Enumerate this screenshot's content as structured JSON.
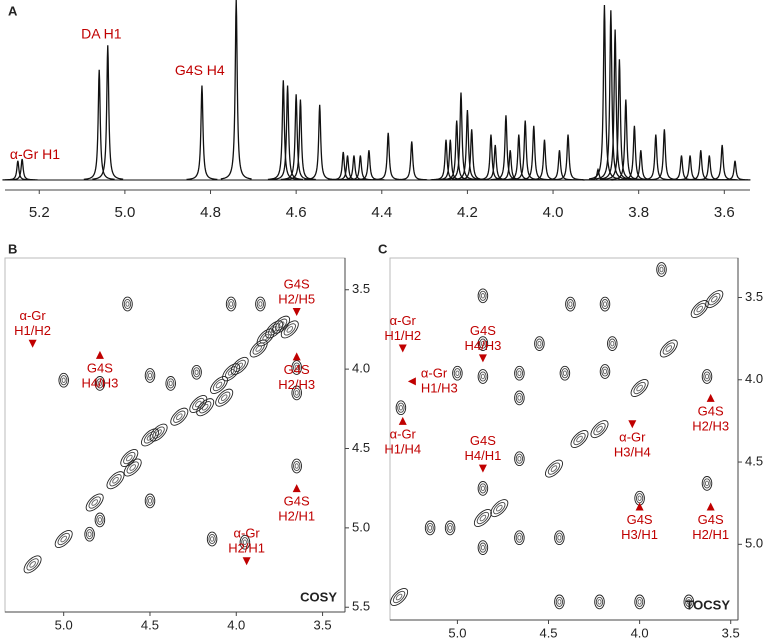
{
  "chart_data": [
    {
      "type": "spectrum",
      "panel": "A",
      "color": "#111111",
      "annotation_color": "#c00000",
      "xlim": [
        5.28,
        3.54
      ],
      "ylim": [
        0,
        100
      ],
      "xticks": [
        5.2,
        {
          "value": 5,
          "label": "5.0"
        },
        4.8,
        4.6,
        4.4,
        4.2,
        {
          "value": 4,
          "label": "4.0"
        },
        3.8,
        3.6
      ],
      "x": [
        5.25,
        5.24,
        5.06,
        5.04,
        4.82,
        4.74,
        4.63,
        4.62,
        4.6,
        4.59,
        4.545,
        4.49,
        4.48,
        4.465,
        4.45,
        4.43,
        4.385,
        4.33,
        4.25,
        4.24,
        4.225,
        4.215,
        4.2,
        4.19,
        4.145,
        4.135,
        4.11,
        4.1,
        4.08,
        4.065,
        4.045,
        4.02,
        3.985,
        3.965,
        3.895,
        3.88,
        3.865,
        3.855,
        3.845,
        3.83,
        3.81,
        3.795,
        3.76,
        3.74,
        3.7,
        3.68,
        3.655,
        3.635,
        3.605,
        3.575
      ],
      "values": [
        11,
        12,
        63,
        77,
        54,
        103,
        57,
        54,
        49,
        46,
        43,
        16,
        14,
        14,
        14,
        17,
        27,
        22,
        23,
        23,
        34,
        50,
        40,
        29,
        26,
        20,
        37,
        17,
        26,
        34,
        31,
        23,
        17,
        26,
        6,
        100,
        97,
        86,
        69,
        46,
        31,
        17,
        26,
        29,
        14,
        14,
        17,
        14,
        20,
        11
      ],
      "annotations": [
        {
          "text": "α-Gr H1",
          "x": 5.21,
          "y": 14
        },
        {
          "text": "DA H1",
          "x": 5.055,
          "y": 83
        },
        {
          "text": "G4S H4",
          "x": 4.825,
          "y": 62
        }
      ]
    },
    {
      "type": "contour",
      "panel": "B",
      "label": "COSY",
      "color": "#222222",
      "annotation_color": "#c00000",
      "xlim": [
        5.34,
        3.37
      ],
      "ylim": [
        3.3,
        5.53
      ],
      "xticks": [
        {
          "value": 5,
          "label": "5.0"
        },
        4.5,
        {
          "value": 4,
          "label": "4.0"
        },
        3.5
      ],
      "yticks": [
        3.5,
        {
          "value": 4,
          "label": "4.0"
        },
        4.5,
        {
          "value": 5,
          "label": "5.0"
        },
        5.5
      ],
      "x": [
        4.63,
        4.03,
        3.86,
        4.79,
        4.5,
        4.38,
        4.23,
        4.03,
        3.87,
        3.69,
        3.65,
        3.65,
        3.65,
        5.0,
        4.79,
        4.62,
        4.5,
        4.33,
        4.18,
        4.07,
        4.85,
        5.0,
        4.14,
        3.95,
        4.5,
        3.78,
        5.18,
        4.6,
        4.45,
        4.22,
        4.1,
        3.98,
        3.83,
        3.74,
        4.82,
        4.7
      ],
      "y": [
        3.59,
        3.59,
        3.59,
        4.09,
        4.04,
        4.09,
        4.02,
        4.02,
        3.87,
        3.75,
        3.99,
        4.15,
        4.61,
        4.07,
        4.95,
        4.56,
        4.43,
        4.3,
        4.24,
        4.18,
        5.04,
        5.07,
        5.07,
        5.09,
        4.83,
        3.75,
        5.23,
        4.62,
        4.4,
        4.22,
        4.1,
        3.98,
        3.8,
        3.72,
        4.84,
        4.7
      ],
      "annotations": [
        {
          "lines": [
            "α-Gr",
            "H1/H2"
          ],
          "x": 5.18,
          "y": 3.84,
          "arrow": "down",
          "text_side": "above"
        },
        {
          "lines": [
            "G4S",
            "H4/H3"
          ],
          "x": 4.79,
          "y": 3.91,
          "arrow": "up",
          "text_side": "below"
        },
        {
          "lines": [
            "G4S",
            "H2/H5"
          ],
          "x": 3.65,
          "y": 3.64,
          "arrow": "down",
          "text_side": "above"
        },
        {
          "lines": [
            "G4S",
            "H2/H3"
          ],
          "x": 3.65,
          "y": 3.92,
          "arrow": "up",
          "text_side": "below"
        },
        {
          "lines": [
            "G4S",
            "H2/H1"
          ],
          "x": 3.65,
          "y": 4.75,
          "arrow": "up",
          "text_side": "below"
        },
        {
          "lines": [
            "α-Gr",
            "H2/H1"
          ],
          "x": 3.94,
          "y": 5.21,
          "arrow": "down",
          "text_side": "above"
        }
      ]
    },
    {
      "type": "contour",
      "panel": "C",
      "label": "TOCSY",
      "color": "#222222",
      "annotation_color": "#c00000",
      "xlim": [
        5.37,
        3.46
      ],
      "ylim": [
        3.26,
        5.46
      ],
      "xticks": [
        {
          "value": 5,
          "label": "5.0"
        },
        4.5,
        {
          "value": 4,
          "label": "4.0"
        },
        3.5
      ],
      "yticks": [
        3.5,
        {
          "value": 4,
          "label": "4.0"
        },
        4.5,
        {
          "value": 5,
          "label": "5.0"
        }
      ],
      "x": [
        5.32,
        5.15,
        5.31,
        5.0,
        4.86,
        4.86,
        4.86,
        4.86,
        4.86,
        4.86,
        4.66,
        4.66,
        4.55,
        4.41,
        4.19,
        4.15,
        3.88,
        3.63,
        3.63,
        4.44,
        4.22,
        4.0,
        3.73,
        4.66,
        4.44,
        4.0,
        5.04,
        4.77,
        4.47,
        4.22,
        4.0,
        3.84,
        3.67,
        3.59,
        4.66,
        4.33,
        4.19,
        4.38
      ],
      "y": [
        5.32,
        4.9,
        4.17,
        3.96,
        3.49,
        3.78,
        3.98,
        4.66,
        4.84,
        5.02,
        3.96,
        4.11,
        3.78,
        3.96,
        3.95,
        3.78,
        3.33,
        3.98,
        4.63,
        5.35,
        5.35,
        5.35,
        5.35,
        4.96,
        4.96,
        4.72,
        4.9,
        4.78,
        4.54,
        4.3,
        4.05,
        3.81,
        3.57,
        3.51,
        4.48,
        4.36,
        3.54,
        3.54
      ],
      "annotations": [
        {
          "lines": [
            "α-Gr",
            "H1/H2"
          ],
          "x": 5.3,
          "y": 3.81,
          "arrow": "down",
          "text_side": "above"
        },
        {
          "lines": [
            "α-Gr",
            "H1/H3"
          ],
          "x": 5.25,
          "y": 4.01,
          "arrow": "left",
          "text_side": "right"
        },
        {
          "lines": [
            "α-Gr",
            "H1/H4"
          ],
          "x": 5.3,
          "y": 4.25,
          "arrow": "up",
          "text_side": "below"
        },
        {
          "lines": [
            "G4S",
            "H4/H3"
          ],
          "x": 4.86,
          "y": 3.87,
          "arrow": "down",
          "text_side": "above"
        },
        {
          "lines": [
            "G4S",
            "H4/H1"
          ],
          "x": 4.86,
          "y": 4.54,
          "arrow": "down",
          "text_side": "above"
        },
        {
          "lines": [
            "α-Gr",
            "H3/H4"
          ],
          "x": 4.04,
          "y": 4.27,
          "arrow": "down",
          "text_side": "below"
        },
        {
          "lines": [
            "G4S",
            "H3/H1"
          ],
          "x": 4.0,
          "y": 4.77,
          "arrow": "up",
          "text_side": "below"
        },
        {
          "lines": [
            "G4S",
            "H2/H3"
          ],
          "x": 3.61,
          "y": 4.11,
          "arrow": "up",
          "text_side": "below"
        },
        {
          "lines": [
            "G4S",
            "H2/H1"
          ],
          "x": 3.61,
          "y": 4.77,
          "arrow": "up",
          "text_side": "below"
        }
      ]
    }
  ]
}
